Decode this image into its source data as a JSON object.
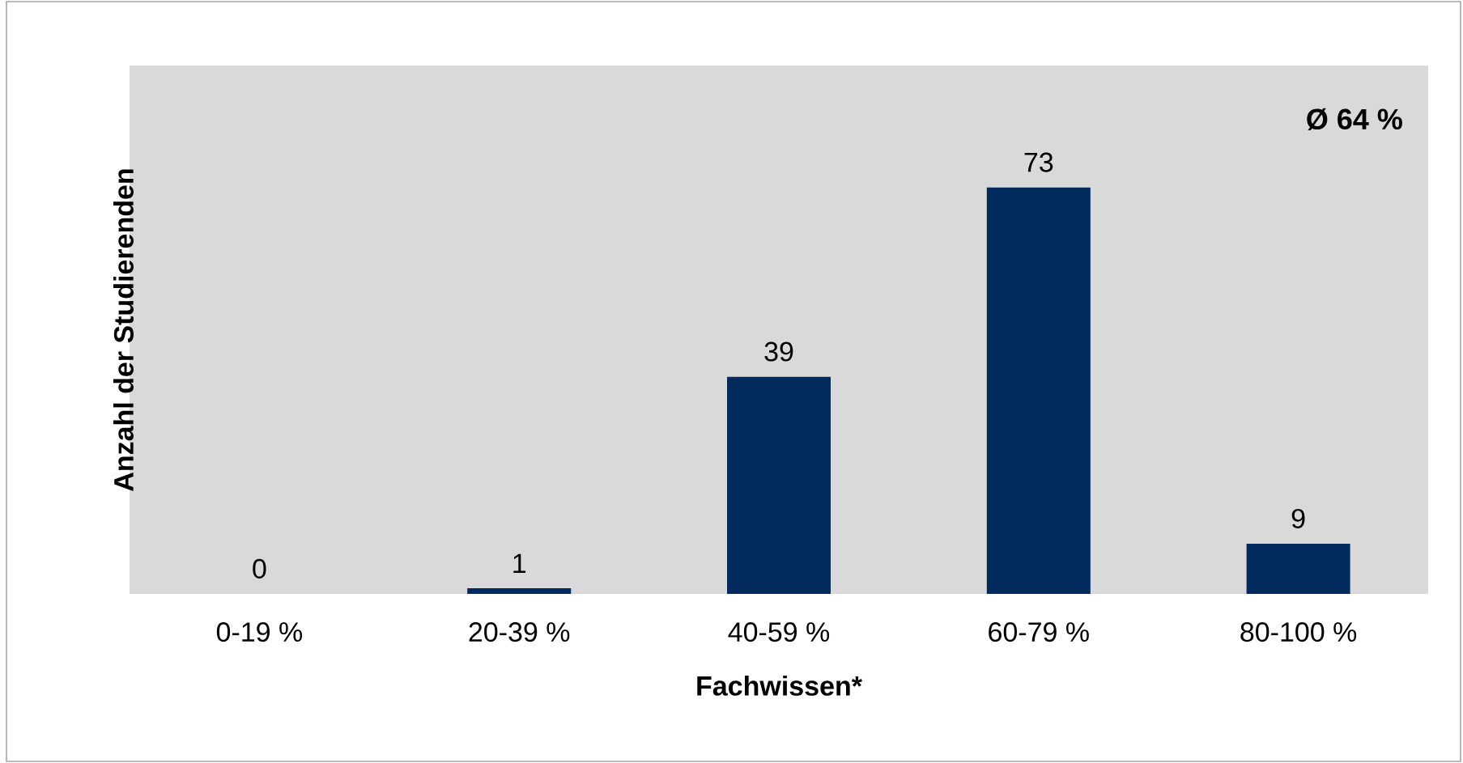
{
  "chart_data": {
    "type": "bar",
    "xlabel": "Fachwissen*",
    "ylabel": "Anzahl der Studierenden",
    "categories": [
      "0-19 %",
      "20-39 %",
      "40-59 %",
      "60-79 %",
      "80-100 %"
    ],
    "values": [
      0,
      1,
      39,
      73,
      9
    ],
    "color": "#002b5c",
    "data_labels": true,
    "annotations": [
      "Ø 64 %"
    ]
  }
}
